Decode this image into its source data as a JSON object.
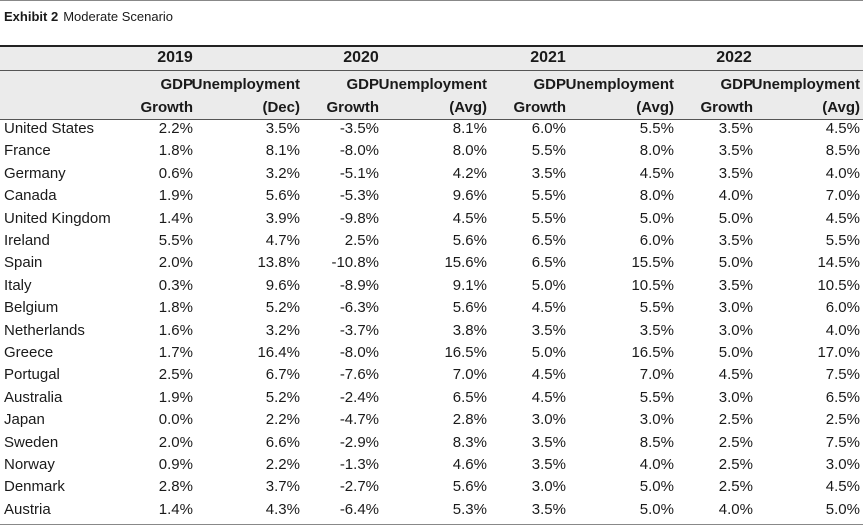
{
  "exhibit": {
    "label": "Exhibit 2",
    "title": "Moderate Scenario"
  },
  "chart_data": {
    "type": "table",
    "years": [
      "2019",
      "2020",
      "2021",
      "2022"
    ],
    "column_headers": [
      {
        "line1": "GDP",
        "line2": "Growth"
      },
      {
        "line1": "Unemployment",
        "line2": "(Dec)"
      },
      {
        "line1": "GDP",
        "line2": "Growth"
      },
      {
        "line1": "Unemployment",
        "line2": "(Avg)"
      },
      {
        "line1": "GDP",
        "line2": "Growth"
      },
      {
        "line1": "Unemployment",
        "line2": "(Avg)"
      },
      {
        "line1": "GDP",
        "line2": "Growth"
      },
      {
        "line1": "Unemployment",
        "line2": "(Avg)"
      }
    ],
    "rows": [
      {
        "country": "United States",
        "values": [
          "2.2%",
          "3.5%",
          "-3.5%",
          "8.1%",
          "6.0%",
          "5.5%",
          "3.5%",
          "4.5%"
        ]
      },
      {
        "country": "France",
        "values": [
          "1.8%",
          "8.1%",
          "-8.0%",
          "8.0%",
          "5.5%",
          "8.0%",
          "3.5%",
          "8.5%"
        ]
      },
      {
        "country": "Germany",
        "values": [
          "0.6%",
          "3.2%",
          "-5.1%",
          "4.2%",
          "3.5%",
          "4.5%",
          "3.5%",
          "4.0%"
        ]
      },
      {
        "country": "Canada",
        "values": [
          "1.9%",
          "5.6%",
          "-5.3%",
          "9.6%",
          "5.5%",
          "8.0%",
          "4.0%",
          "7.0%"
        ]
      },
      {
        "country": "United Kingdom",
        "values": [
          "1.4%",
          "3.9%",
          "-9.8%",
          "4.5%",
          "5.5%",
          "5.0%",
          "5.0%",
          "4.5%"
        ]
      },
      {
        "country": "Ireland",
        "values": [
          "5.5%",
          "4.7%",
          "2.5%",
          "5.6%",
          "6.5%",
          "6.0%",
          "3.5%",
          "5.5%"
        ]
      },
      {
        "country": "Spain",
        "values": [
          "2.0%",
          "13.8%",
          "-10.8%",
          "15.6%",
          "6.5%",
          "15.5%",
          "5.0%",
          "14.5%"
        ]
      },
      {
        "country": "Italy",
        "values": [
          "0.3%",
          "9.6%",
          "-8.9%",
          "9.1%",
          "5.0%",
          "10.5%",
          "3.5%",
          "10.5%"
        ]
      },
      {
        "country": "Belgium",
        "values": [
          "1.8%",
          "5.2%",
          "-6.3%",
          "5.6%",
          "4.5%",
          "5.5%",
          "3.0%",
          "6.0%"
        ]
      },
      {
        "country": "Netherlands",
        "values": [
          "1.6%",
          "3.2%",
          "-3.7%",
          "3.8%",
          "3.5%",
          "3.5%",
          "3.0%",
          "4.0%"
        ]
      },
      {
        "country": "Greece",
        "values": [
          "1.7%",
          "16.4%",
          "-8.0%",
          "16.5%",
          "5.0%",
          "16.5%",
          "5.0%",
          "17.0%"
        ]
      },
      {
        "country": "Portugal",
        "values": [
          "2.5%",
          "6.7%",
          "-7.6%",
          "7.0%",
          "4.5%",
          "7.0%",
          "4.5%",
          "7.5%"
        ]
      },
      {
        "country": "Australia",
        "values": [
          "1.9%",
          "5.2%",
          "-2.4%",
          "6.5%",
          "4.5%",
          "5.5%",
          "3.0%",
          "6.5%"
        ]
      },
      {
        "country": "Japan",
        "values": [
          "0.0%",
          "2.2%",
          "-4.7%",
          "2.8%",
          "3.0%",
          "3.0%",
          "2.5%",
          "2.5%"
        ]
      },
      {
        "country": "Sweden",
        "values": [
          "2.0%",
          "6.6%",
          "-2.9%",
          "8.3%",
          "3.5%",
          "8.5%",
          "2.5%",
          "7.5%"
        ]
      },
      {
        "country": "Norway",
        "values": [
          "0.9%",
          "2.2%",
          "-1.3%",
          "4.6%",
          "3.5%",
          "4.0%",
          "2.5%",
          "3.0%"
        ]
      },
      {
        "country": "Denmark",
        "values": [
          "2.8%",
          "3.7%",
          "-2.7%",
          "5.6%",
          "3.0%",
          "5.0%",
          "2.5%",
          "4.5%"
        ]
      },
      {
        "country": "Austria",
        "values": [
          "1.4%",
          "4.3%",
          "-6.4%",
          "5.3%",
          "3.5%",
          "5.0%",
          "4.0%",
          "5.0%"
        ]
      }
    ]
  }
}
